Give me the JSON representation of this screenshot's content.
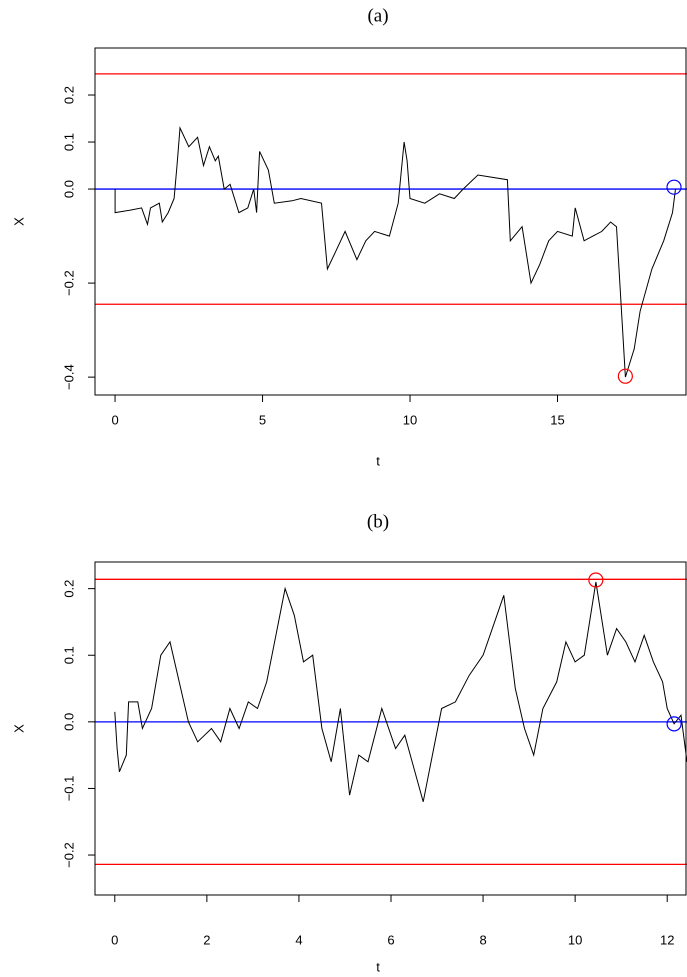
{
  "chart_data": [
    {
      "type": "line",
      "title": "(a)",
      "xlabel": "t",
      "ylabel": "X",
      "xlim": [
        -0.68,
        19.39
      ],
      "ylim": [
        -0.438,
        0.3
      ],
      "xticks": [
        0,
        5,
        10,
        15
      ],
      "yticks": [
        {
          "value": -0.4,
          "label": "−0.4"
        },
        {
          "value": -0.2,
          "label": "−0.2"
        },
        {
          "value": 0,
          "label": "0.0"
        },
        0.1,
        0.2
      ],
      "series": [
        {
          "color": "#000000",
          "x": [
            0,
            0,
            0.5,
            0.9,
            1.1,
            1.2,
            1.5,
            1.6,
            1.8,
            2.0,
            2.1,
            2.2,
            2.5,
            2.8,
            3.0,
            3.2,
            3.4,
            3.5,
            3.7,
            3.9,
            4.2,
            4.5,
            4.7,
            4.8,
            4.9,
            5.2,
            5.4,
            6.0,
            6.3,
            7.0,
            7.2,
            7.5,
            7.8,
            8.2,
            8.5,
            8.8,
            9.3,
            9.6,
            9.8,
            9.9,
            10.0,
            10.5,
            11.0,
            11.5,
            11.8,
            12.3,
            13.3,
            13.4,
            13.8,
            14.1,
            14.4,
            14.7,
            15.0,
            15.5,
            15.6,
            15.9,
            16.2,
            16.5,
            16.8,
            17.0,
            17.3,
            17.6,
            17.8,
            18.2,
            18.6,
            18.9,
            19.0
          ],
          "values": [
            0,
            -0.05,
            -0.045,
            -0.04,
            -0.075,
            -0.04,
            -0.03,
            -0.07,
            -0.05,
            -0.02,
            0.05,
            0.13,
            0.09,
            0.11,
            0.05,
            0.09,
            0.06,
            0.07,
            0.0,
            0.01,
            -0.05,
            -0.04,
            0.0,
            -0.05,
            0.08,
            0.04,
            -0.03,
            -0.025,
            -0.02,
            -0.03,
            -0.17,
            -0.13,
            -0.09,
            -0.15,
            -0.11,
            -0.09,
            -0.1,
            -0.03,
            0.1,
            0.06,
            -0.02,
            -0.03,
            -0.01,
            -0.02,
            0.0,
            0.03,
            0.02,
            -0.11,
            -0.08,
            -0.2,
            -0.16,
            -0.11,
            -0.09,
            -0.1,
            -0.04,
            -0.11,
            -0.1,
            -0.09,
            -0.07,
            -0.08,
            -0.4,
            -0.34,
            -0.26,
            -0.17,
            -0.11,
            -0.05,
            0.0
          ]
        }
      ],
      "hlines": [
        {
          "value": 0.245,
          "color": "#ff0000"
        },
        {
          "value": -0.245,
          "color": "#ff0000"
        },
        {
          "value": 0,
          "color": "#0000ff"
        }
      ],
      "points": [
        {
          "x": 17.3,
          "y": -0.398,
          "color": "#ff0000"
        },
        {
          "x": 18.95,
          "y": 0.004,
          "color": "#0000ff"
        }
      ]
    },
    {
      "type": "line",
      "title": "(b)",
      "xlabel": "t",
      "ylabel": "X",
      "xlim": [
        -0.43,
        12.43
      ],
      "ylim": [
        -0.26,
        0.24
      ],
      "xticks": [
        0,
        2,
        4,
        6,
        8,
        10,
        12
      ],
      "yticks": [
        {
          "value": -0.2,
          "label": "−0.2"
        },
        {
          "value": -0.1,
          "label": "−0.1"
        },
        {
          "value": 0,
          "label": "0.0"
        },
        0.1,
        0.2
      ],
      "series": [
        {
          "color": "#000000",
          "x": [
            0,
            0.05,
            0.1,
            0.25,
            0.3,
            0.5,
            0.6,
            0.8,
            1.0,
            1.2,
            1.4,
            1.6,
            1.8,
            2.1,
            2.3,
            2.5,
            2.7,
            2.9,
            3.1,
            3.3,
            3.5,
            3.7,
            3.9,
            4.1,
            4.3,
            4.5,
            4.7,
            4.9,
            5.1,
            5.3,
            5.5,
            5.8,
            6.1,
            6.3,
            6.5,
            6.7,
            6.9,
            7.1,
            7.4,
            7.7,
            8.0,
            8.3,
            8.45,
            8.7,
            8.9,
            9.1,
            9.3,
            9.6,
            9.8,
            10.0,
            10.2,
            10.45,
            10.7,
            10.9,
            11.1,
            11.3,
            11.5,
            11.7,
            11.9,
            12.0,
            12.15,
            12.3,
            12.43
          ],
          "values": [
            0.015,
            -0.04,
            -0.075,
            -0.05,
            0.03,
            0.03,
            -0.01,
            0.02,
            0.1,
            0.12,
            0.06,
            0.0,
            -0.03,
            -0.01,
            -0.03,
            0.02,
            -0.01,
            0.03,
            0.02,
            0.06,
            0.13,
            0.2,
            0.16,
            0.09,
            0.1,
            -0.01,
            -0.06,
            0.02,
            -0.11,
            -0.05,
            -0.06,
            0.02,
            -0.04,
            -0.02,
            -0.07,
            -0.12,
            -0.05,
            0.02,
            0.03,
            0.07,
            0.1,
            0.16,
            0.19,
            0.05,
            -0.01,
            -0.05,
            0.02,
            0.06,
            0.12,
            0.09,
            0.1,
            0.21,
            0.1,
            0.14,
            0.12,
            0.09,
            0.13,
            0.09,
            0.06,
            0.02,
            -0.003,
            0.01,
            -0.06
          ]
        }
      ],
      "hlines": [
        {
          "value": 0.214,
          "color": "#ff0000"
        },
        {
          "value": -0.214,
          "color": "#ff0000"
        },
        {
          "value": 0,
          "color": "#0000ff"
        }
      ],
      "points": [
        {
          "x": 10.45,
          "y": 0.213,
          "color": "#ff0000"
        },
        {
          "x": 12.15,
          "y": -0.003,
          "color": "#0000ff"
        }
      ]
    }
  ]
}
